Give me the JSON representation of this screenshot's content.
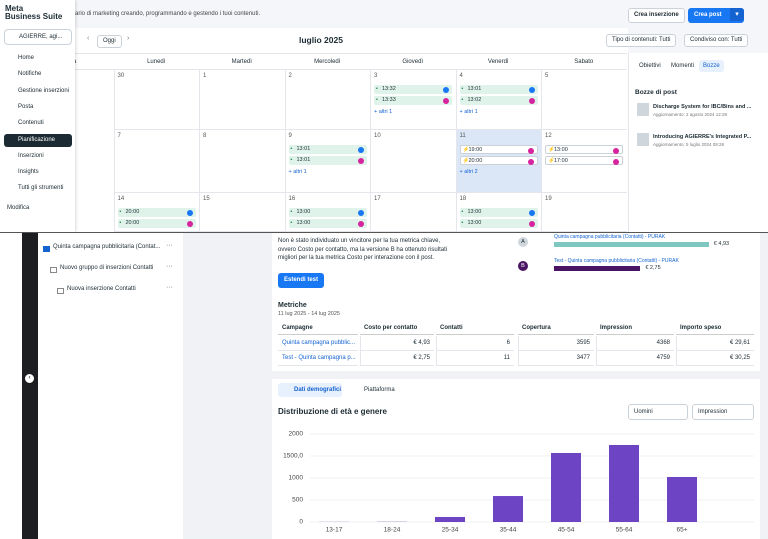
{
  "app": {
    "logo": "Meta",
    "logo_sub": "Business Suite",
    "subtitle": "ario di marketing creando, programmando e gestendo i tuoi contenuti.",
    "create_ad": "Crea inserzione",
    "create_post": "Crea post",
    "account": "AGIERRE, agi...",
    "nav": [
      "Home",
      "Notifiche",
      "Gestione inserzioni",
      "Posta",
      "Contenuti",
      "Pianificazione",
      "Inserzioni",
      "Insights",
      "Tutti gli strumenti"
    ],
    "nav_active": 5,
    "edit": "Modifica"
  },
  "calendar": {
    "today": "Oggi",
    "month": "luglio 2025",
    "filter_type": "Tipo di contenuti: Tutti",
    "filter_shared": "Condiviso con: Tutti",
    "weekdays": [
      "nica",
      "Lunedì",
      "Martedì",
      "Mercoledì",
      "Giovedì",
      "Venerdì",
      "Sabato"
    ],
    "weeks": [
      [
        {
          "day": 30
        },
        {
          "day": 1
        },
        {
          "day": 2
        },
        {
          "day": 3,
          "posts": [
            {
              "time": "13:32",
              "network": "facebook"
            },
            {
              "time": "13:33",
              "network": "instagram"
            }
          ],
          "more": "+ altri 1"
        },
        {
          "day": 4,
          "posts": [
            {
              "time": "13:01",
              "network": "facebook"
            },
            {
              "time": "13:02",
              "network": "instagram"
            }
          ],
          "more": "+ altri 1"
        },
        {
          "day": 5
        }
      ],
      [
        {
          "day": 7
        },
        {
          "day": 8
        },
        {
          "day": 9,
          "posts": [
            {
              "time": "13:01",
              "network": "facebook"
            },
            {
              "time": "13:01",
              "network": "instagram"
            }
          ],
          "more": "+ altri 1"
        },
        {
          "day": 10
        },
        {
          "day": 11,
          "today": true,
          "posts": [
            {
              "time": "19:00",
              "network": "instagram",
              "scheduled": true
            },
            {
              "time": "20:00",
              "network": "instagram",
              "scheduled": true
            }
          ],
          "more": "+ altri 2"
        },
        {
          "day": 12,
          "posts": [
            {
              "time": "13:00",
              "network": "instagram",
              "scheduled": true
            },
            {
              "time": "17:00",
              "network": "instagram",
              "scheduled": true
            }
          ]
        }
      ],
      [
        {
          "day": 14,
          "posts": [
            {
              "time": "20:00",
              "network": "facebook"
            },
            {
              "time": "20:00",
              "network": "instagram"
            }
          ]
        },
        {
          "day": 15
        },
        {
          "day": 16,
          "posts": [
            {
              "time": "13:00",
              "network": "facebook"
            },
            {
              "time": "13:00",
              "network": "instagram"
            }
          ]
        },
        {
          "day": 17
        },
        {
          "day": 18,
          "posts": [
            {
              "time": "13:00",
              "network": "facebook"
            },
            {
              "time": "13:00",
              "network": "instagram"
            }
          ]
        },
        {
          "day": 19
        }
      ]
    ]
  },
  "side_panel": {
    "tabs": [
      "Obiettivi",
      "Momenti",
      "Bozze"
    ],
    "active_tab": 2,
    "drafts_title": "Bozze di post",
    "drafts": [
      {
        "title": "Discharge System for IBC/Bins and ...",
        "updated": "Aggiornamento: 2 agosto 2024 12:28"
      },
      {
        "title": "Introducing AGIERRE's Integrated P...",
        "updated": "Aggiornamento: 5 luglio 2024 09:28"
      }
    ]
  },
  "tree": [
    "Quinta campagna pubblicitaria (Contat...",
    "Nuovo gruppo di inserzioni Contatti",
    "Nuova inserzione Contatti"
  ],
  "test_result": {
    "text": "Non è stato individuato un vincitore per la tua metrica chiave, ovvero Costo per contatto, ma la versione B ha ottenuto risultati migliori per la tua metrica Costo per interazione con il post.",
    "button": "Estendi test",
    "versions": [
      {
        "letter": "A",
        "name": "Quinta campagna pubblicitaria (Contatti) - PURAK",
        "value": 4.93,
        "value_label": "€ 4,93",
        "color": "#7fc7c1"
      },
      {
        "letter": "B",
        "name": "Test - Quinta campagna pubblicitaria (Contatti) - PURAK",
        "value": 2.75,
        "value_label": "€ 2,75",
        "color": "#4a1464"
      }
    ]
  },
  "metrics": {
    "title": "Metriche",
    "dates": "11 lug 2025 - 14 lug 2025",
    "columns": [
      "Campagne",
      "Costo per contatto",
      "Contatti",
      "Copertura",
      "Impression",
      "Importo speso"
    ],
    "rows": [
      [
        "Quinta campagna pubblic...",
        "€ 4,93",
        6,
        3595,
        4368,
        "€ 29,61"
      ],
      [
        "Test - Quinta campagna p...",
        "€ 2,75",
        11,
        3477,
        4759,
        "€ 30,25"
      ]
    ]
  },
  "demographics": {
    "tabs": [
      "Dati demografici",
      "Piattaforma"
    ],
    "title": "Distribuzione di età e genere",
    "gender": "Uomini",
    "metric": "Impression",
    "chart": {
      "type": "bar",
      "categories": [
        "13-17",
        "18-24",
        "25-34",
        "35-44",
        "45-54",
        "55-64",
        "65+"
      ],
      "values": [
        3,
        5,
        114,
        590,
        1568,
        1750,
        1023
      ],
      "color": "#6c44c4",
      "ylim": [
        0,
        2000
      ],
      "yticks": [
        0,
        500,
        1000,
        {
          "value": 1500,
          "label": "1500,0"
        },
        2000
      ],
      "grid": true
    }
  }
}
